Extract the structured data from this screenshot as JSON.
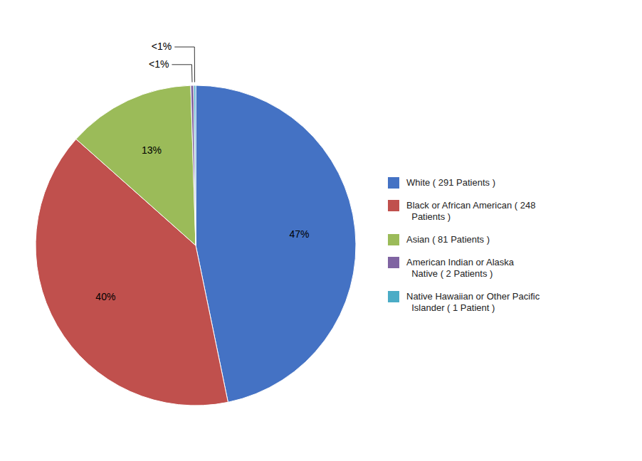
{
  "chart_data": {
    "type": "pie",
    "categories": [
      "White ( 291 Patients )",
      "Black or African American ( 248\n  Patients )",
      "Asian ( 81 Patients )",
      "American Indian or Alaska\n  Native ( 2 Patients )",
      "Native Hawaiian or Other Pacific\n  Islander ( 1 Patient )"
    ],
    "values": [
      47,
      40,
      13,
      0.3,
      0.2
    ],
    "value_labels": [
      "47%",
      "40%",
      "13%",
      "<1%",
      "<1%"
    ],
    "colors": [
      "#4472C4",
      "#C0504D",
      "#9BBB59",
      "#8064A2",
      "#4BACC6"
    ],
    "data_labels": true,
    "legend": "right"
  }
}
